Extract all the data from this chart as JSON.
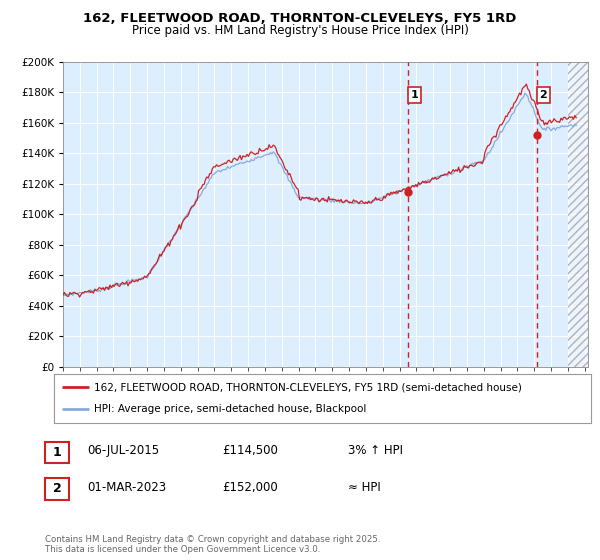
{
  "title1": "162, FLEETWOOD ROAD, THORNTON-CLEVELEYS, FY5 1RD",
  "title2": "Price paid vs. HM Land Registry's House Price Index (HPI)",
  "legend_line1": "162, FLEETWOOD ROAD, THORNTON-CLEVELEYS, FY5 1RD (semi-detached house)",
  "legend_line2": "HPI: Average price, semi-detached house, Blackpool",
  "annotation1_date": "06-JUL-2015",
  "annotation1_price": "£114,500",
  "annotation1_hpi": "3% ↑ HPI",
  "annotation2_date": "01-MAR-2023",
  "annotation2_price": "£152,000",
  "annotation2_hpi": "≈ HPI",
  "footer": "Contains HM Land Registry data © Crown copyright and database right 2025.\nThis data is licensed under the Open Government Licence v3.0.",
  "red_color": "#cc2222",
  "blue_color": "#88aadd",
  "vline_color": "#cc2222",
  "plot_bg": "#ddeeff",
  "fig_bg": "#ffffff",
  "grid_color": "#ffffff",
  "ylim_min": 0,
  "ylim_max": 200000,
  "year_start": 1995,
  "year_end": 2026,
  "marker1_year": 2015.5,
  "marker2_year": 2023.17,
  "marker1_value": 114500,
  "marker2_value": 152000
}
